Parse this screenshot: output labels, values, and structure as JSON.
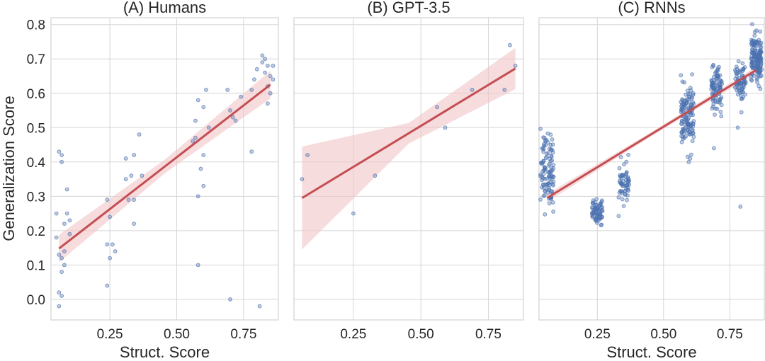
{
  "chart_data": {
    "type": "scatter",
    "ylabel": "Generalization Score",
    "xlim": [
      0.03,
      0.88
    ],
    "ylim": [
      -0.06,
      0.82
    ],
    "xticks": [
      0.25,
      0.5,
      0.75
    ],
    "xtick_labels": [
      "0.25",
      "0.50",
      "0.75"
    ],
    "yticks": [
      0.0,
      0.1,
      0.2,
      0.3,
      0.4,
      0.5,
      0.6,
      0.7,
      0.8
    ],
    "ytick_labels": [
      "0.0",
      "0.1",
      "0.2",
      "0.3",
      "0.4",
      "0.5",
      "0.6",
      "0.7",
      "0.8"
    ],
    "grid": true,
    "colors": {
      "points": "#4c72b0",
      "fit_line": "#c44e52",
      "ci_band": "#f2c4c8"
    },
    "panels": [
      {
        "title": "(A) Humans",
        "xlabel": "Struct. Score",
        "fit": {
          "x": [
            0.06,
            0.85
          ],
          "y": [
            0.148,
            0.625
          ],
          "ci_width": [
            0.04,
            0.02,
            0.04
          ]
        },
        "points": [
          [
            0.05,
            0.25
          ],
          [
            0.06,
            0.43
          ],
          [
            0.07,
            0.42
          ],
          [
            0.07,
            0.4
          ],
          [
            0.05,
            0.18
          ],
          [
            0.06,
            0.13
          ],
          [
            0.07,
            0.12
          ],
          [
            0.08,
            0.22
          ],
          [
            0.08,
            0.1
          ],
          [
            0.09,
            0.32
          ],
          [
            0.06,
            0.02
          ],
          [
            0.07,
            0.01
          ],
          [
            0.06,
            -0.02
          ],
          [
            0.09,
            0.25
          ],
          [
            0.1,
            0.23
          ],
          [
            0.07,
            0.08
          ],
          [
            0.08,
            0.14
          ],
          [
            0.1,
            0.19
          ],
          [
            0.24,
            0.29
          ],
          [
            0.24,
            0.16
          ],
          [
            0.25,
            0.12
          ],
          [
            0.24,
            0.04
          ],
          [
            0.26,
            0.16
          ],
          [
            0.27,
            0.14
          ],
          [
            0.25,
            0.24
          ],
          [
            0.31,
            0.41
          ],
          [
            0.31,
            0.35
          ],
          [
            0.32,
            0.29
          ],
          [
            0.33,
            0.36
          ],
          [
            0.34,
            0.22
          ],
          [
            0.34,
            0.29
          ],
          [
            0.36,
            0.48
          ],
          [
            0.37,
            0.36
          ],
          [
            0.34,
            0.42
          ],
          [
            0.56,
            0.46
          ],
          [
            0.57,
            0.47
          ],
          [
            0.58,
            0.58
          ],
          [
            0.59,
            0.38
          ],
          [
            0.6,
            0.56
          ],
          [
            0.6,
            0.33
          ],
          [
            0.61,
            0.61
          ],
          [
            0.62,
            0.5
          ],
          [
            0.58,
            0.3
          ],
          [
            0.58,
            0.1
          ],
          [
            0.6,
            0.42
          ],
          [
            0.57,
            0.52
          ],
          [
            0.69,
            0.61
          ],
          [
            0.7,
            0.55
          ],
          [
            0.71,
            0.53
          ],
          [
            0.72,
            0.52
          ],
          [
            0.7,
            0.0
          ],
          [
            0.74,
            0.59
          ],
          [
            0.78,
            0.61
          ],
          [
            0.79,
            0.64
          ],
          [
            0.8,
            0.67
          ],
          [
            0.81,
            -0.02
          ],
          [
            0.78,
            0.43
          ],
          [
            0.82,
            0.71
          ],
          [
            0.83,
            0.7
          ],
          [
            0.84,
            0.68
          ],
          [
            0.83,
            0.66
          ],
          [
            0.84,
            0.62
          ],
          [
            0.85,
            0.6
          ],
          [
            0.86,
            0.68
          ],
          [
            0.85,
            0.65
          ],
          [
            0.84,
            0.57
          ],
          [
            0.82,
            0.69
          ],
          [
            0.86,
            0.64
          ]
        ]
      },
      {
        "title": "(B) GPT-3.5",
        "xlabel": "",
        "fit": {
          "x": [
            0.06,
            0.85
          ],
          "y": [
            0.295,
            0.672
          ],
          "ci_width": [
            0.15,
            0.03,
            0.06
          ]
        },
        "points": [
          [
            0.06,
            0.35
          ],
          [
            0.08,
            0.42
          ],
          [
            0.25,
            0.25
          ],
          [
            0.33,
            0.36
          ],
          [
            0.56,
            0.56
          ],
          [
            0.59,
            0.5
          ],
          [
            0.69,
            0.61
          ],
          [
            0.81,
            0.61
          ],
          [
            0.83,
            0.74
          ],
          [
            0.85,
            0.68
          ]
        ]
      },
      {
        "title": "(C) RNNs",
        "xlabel": "Struct. Score",
        "fit": {
          "x": [
            0.06,
            0.85
          ],
          "y": [
            0.295,
            0.668
          ],
          "ci_width": [
            0.012,
            0.006,
            0.01
          ]
        },
        "clusters": [
          {
            "x": 0.06,
            "x_spread": 0.025,
            "y": 0.38,
            "y_spread": 0.055,
            "n": 110
          },
          {
            "x": 0.25,
            "x_spread": 0.02,
            "y": 0.255,
            "y_spread": 0.017,
            "n": 70
          },
          {
            "x": 0.35,
            "x_spread": 0.02,
            "y": 0.34,
            "y_spread": 0.028,
            "n": 60
          },
          {
            "x": 0.59,
            "x_spread": 0.025,
            "y": 0.53,
            "y_spread": 0.045,
            "n": 130
          },
          {
            "x": 0.7,
            "x_spread": 0.02,
            "y": 0.61,
            "y_spread": 0.03,
            "n": 90
          },
          {
            "x": 0.79,
            "x_spread": 0.02,
            "y": 0.63,
            "y_spread": 0.03,
            "n": 70
          },
          {
            "x": 0.85,
            "x_spread": 0.02,
            "y": 0.7,
            "y_spread": 0.033,
            "n": 160
          }
        ],
        "extra_points": [
          [
            0.79,
            0.27
          ],
          [
            0.78,
            0.5
          ],
          [
            0.69,
            0.44
          ],
          [
            0.6,
            0.41
          ]
        ]
      }
    ]
  }
}
